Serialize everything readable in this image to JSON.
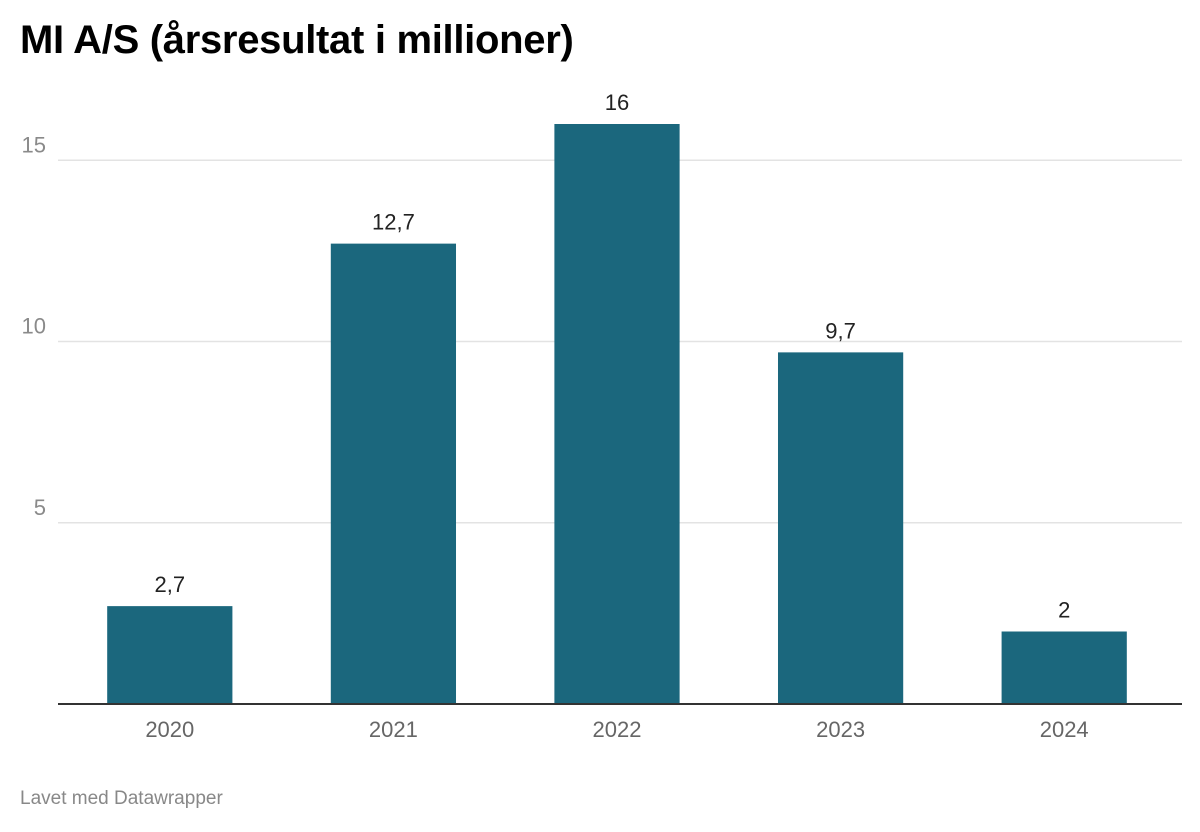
{
  "title": "MI A/S (årsresultat i millioner)",
  "footer": "Lavet med Datawrapper",
  "colors": {
    "bar": "#1b677d",
    "grid": "#e3e3e3",
    "baseline": "#333333"
  },
  "chart_data": {
    "type": "bar",
    "title": "MI A/S (årsresultat i millioner)",
    "categories": [
      "2020",
      "2021",
      "2022",
      "2023",
      "2024"
    ],
    "values": [
      2.7,
      12.7,
      16,
      9.7,
      2
    ],
    "value_labels": [
      "2,7",
      "12,7",
      "16",
      "9,7",
      "2"
    ],
    "y_ticks": [
      {
        "value": 5,
        "label": "5"
      },
      {
        "value": 10,
        "label": "10"
      },
      {
        "value": 15,
        "label": "15"
      }
    ],
    "ylim": [
      0,
      16
    ],
    "xlabel": "",
    "ylabel": "",
    "grid": true,
    "legend": "none"
  }
}
